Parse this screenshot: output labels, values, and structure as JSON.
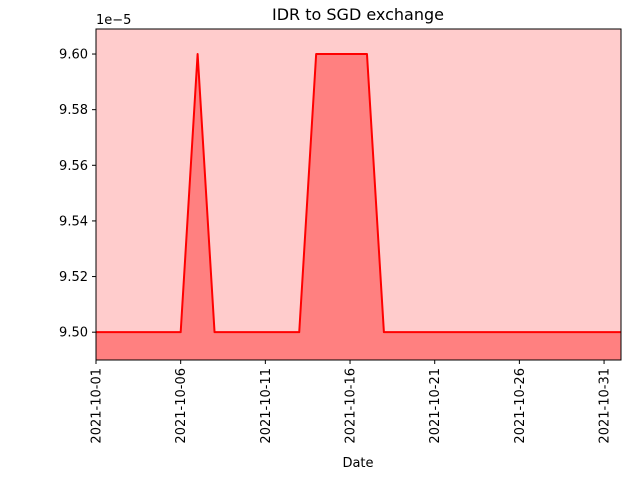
{
  "chart_data": {
    "type": "area",
    "title": "IDR to SGD exchange",
    "xlabel": "Date",
    "ylabel": "",
    "y_offset_label": "1e−5",
    "x_tick_labels": [
      "2021-10-01",
      "2021-10-06",
      "2021-10-11",
      "2021-10-16",
      "2021-10-21",
      "2021-10-26",
      "2021-10-31"
    ],
    "y_ticks": [
      9.5,
      9.52,
      9.54,
      9.56,
      9.58,
      9.6
    ],
    "y_tick_labels": [
      "9.50",
      "9.52",
      "9.54",
      "9.56",
      "9.58",
      "9.60"
    ],
    "ylim": [
      9.49,
      9.609
    ],
    "xlim_days": [
      0,
      31
    ],
    "series": [
      {
        "name": "IDR to SGD",
        "dates": [
          "2021-10-01",
          "2021-10-02",
          "2021-10-03",
          "2021-10-04",
          "2021-10-05",
          "2021-10-06",
          "2021-10-07",
          "2021-10-08",
          "2021-10-09",
          "2021-10-10",
          "2021-10-11",
          "2021-10-12",
          "2021-10-13",
          "2021-10-14",
          "2021-10-15",
          "2021-10-16",
          "2021-10-17",
          "2021-10-18",
          "2021-10-19",
          "2021-10-20",
          "2021-10-21",
          "2021-10-22",
          "2021-10-23",
          "2021-10-24",
          "2021-10-25",
          "2021-10-26",
          "2021-10-27",
          "2021-10-28",
          "2021-10-29",
          "2021-10-30",
          "2021-10-31",
          "2021-11-01"
        ],
        "values": [
          9.5,
          9.5,
          9.5,
          9.5,
          9.5,
          9.5,
          9.6,
          9.5,
          9.5,
          9.5,
          9.5,
          9.5,
          9.5,
          9.6,
          9.6,
          9.6,
          9.6,
          9.5,
          9.5,
          9.5,
          9.5,
          9.5,
          9.5,
          9.5,
          9.5,
          9.5,
          9.5,
          9.5,
          9.5,
          9.5,
          9.5,
          9.5
        ]
      }
    ],
    "colors": {
      "line": "#ff0000",
      "fill_below": "#ff8080",
      "fill_above": "#ffcccc"
    }
  }
}
